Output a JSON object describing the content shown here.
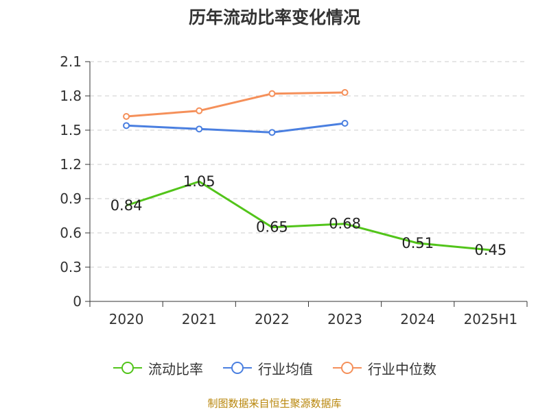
{
  "chart_data": {
    "type": "line",
    "title": "历年流动比率变化情况",
    "categories": [
      "2020",
      "2021",
      "2022",
      "2023",
      "2024",
      "2025H1"
    ],
    "ylim": [
      0,
      2.1
    ],
    "y_ticks": [
      "0",
      "0.3",
      "0.6",
      "0.9",
      "1.2",
      "1.5",
      "1.8",
      "2.1"
    ],
    "grid": true,
    "legend_position": "bottom",
    "series": [
      {
        "name": "流动比率",
        "color": "#52c41a",
        "values": [
          0.84,
          1.05,
          0.65,
          0.68,
          0.51,
          0.45
        ],
        "show_labels": true,
        "data_labels": [
          "0.84",
          "1.05",
          "0.65",
          "0.68",
          "0.51",
          "0.45"
        ]
      },
      {
        "name": "行业均值",
        "color": "#4a7fe0",
        "values": [
          1.54,
          1.51,
          1.48,
          1.56,
          null,
          null
        ],
        "show_labels": false
      },
      {
        "name": "行业中位数",
        "color": "#f5905a",
        "values": [
          1.62,
          1.67,
          1.82,
          1.83,
          null,
          null
        ],
        "show_labels": false
      }
    ]
  },
  "source": "制图数据来自恒生聚源数据库"
}
